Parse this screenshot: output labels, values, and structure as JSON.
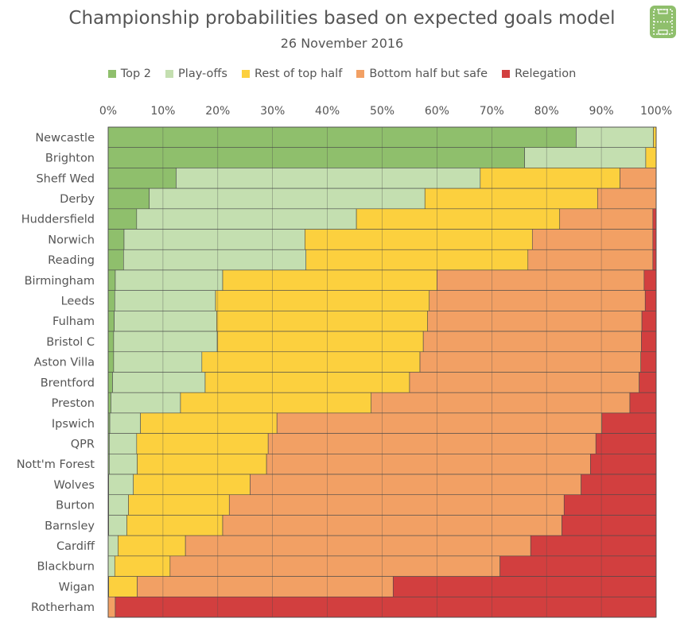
{
  "chart_data": {
    "type": "bar",
    "orientation": "horizontal",
    "stacked": true,
    "title": "Championship probabilities based on expected goals model",
    "subtitle": "26 November 2016",
    "xlim": [
      0,
      100
    ],
    "x_ticks": [
      "0%",
      "10%",
      "20%",
      "30%",
      "40%",
      "50%",
      "60%",
      "70%",
      "80%",
      "90%",
      "100%"
    ],
    "legend_position": "top",
    "grid": true,
    "categories": [
      "Newcastle",
      "Brighton",
      "Sheff Wed",
      "Derby",
      "Huddersfield",
      "Norwich",
      "Reading",
      "Birmingham",
      "Leeds",
      "Fulham",
      "Bristol C",
      "Aston Villa",
      "Brentford",
      "Preston",
      "Ipswich",
      "QPR",
      "Nott'm Forest",
      "Wolves",
      "Burton",
      "Barnsley",
      "Cardiff",
      "Blackburn",
      "Wigan",
      "Rotherham"
    ],
    "series": [
      {
        "name": "Top 2",
        "color": "#8fbf6c",
        "values": [
          85.4,
          76.0,
          12.4,
          7.5,
          5.2,
          2.9,
          2.8,
          1.3,
          1.2,
          1.1,
          1.0,
          1.0,
          0.8,
          0.5,
          0.3,
          0.2,
          0.2,
          0.1,
          0.1,
          0.1,
          0.0,
          0.0,
          0.0,
          0.0
        ]
      },
      {
        "name": "Play-offs",
        "color": "#c4dfb0",
        "values": [
          14.1,
          22.1,
          55.5,
          50.3,
          40.1,
          33.0,
          33.3,
          19.6,
          18.4,
          18.7,
          18.9,
          16.1,
          16.9,
          12.7,
          5.6,
          5.0,
          5.1,
          4.5,
          3.6,
          3.3,
          1.8,
          1.2,
          0.1,
          0.0
        ]
      },
      {
        "name": "Rest of top half",
        "color": "#fcd03e",
        "values": [
          0.5,
          1.9,
          25.5,
          31.5,
          37.1,
          41.5,
          40.5,
          39.1,
          39.0,
          38.5,
          37.6,
          39.8,
          37.3,
          34.8,
          24.9,
          24.0,
          23.6,
          21.3,
          18.4,
          17.5,
          12.3,
          10.1,
          5.2,
          0.0
        ]
      },
      {
        "name": "Bottom half but safe",
        "color": "#f2a064",
        "values": [
          0.0,
          0.0,
          6.6,
          10.7,
          17.0,
          22.0,
          22.8,
          37.8,
          39.4,
          39.1,
          39.8,
          40.3,
          41.9,
          47.2,
          59.3,
          59.8,
          59.1,
          60.4,
          61.1,
          61.9,
          63.0,
          60.2,
          46.7,
          1.3
        ]
      },
      {
        "name": "Relegation",
        "color": "#d23f3f",
        "values": [
          0.0,
          0.0,
          0.0,
          0.0,
          0.6,
          0.6,
          0.6,
          2.2,
          2.0,
          2.6,
          2.7,
          2.8,
          3.1,
          4.8,
          9.9,
          11.0,
          12.0,
          13.7,
          16.8,
          17.2,
          22.9,
          28.5,
          48.0,
          98.7
        ]
      }
    ]
  },
  "logo": {
    "name": "pitch-logo-icon",
    "color": "#8fbf6c"
  }
}
